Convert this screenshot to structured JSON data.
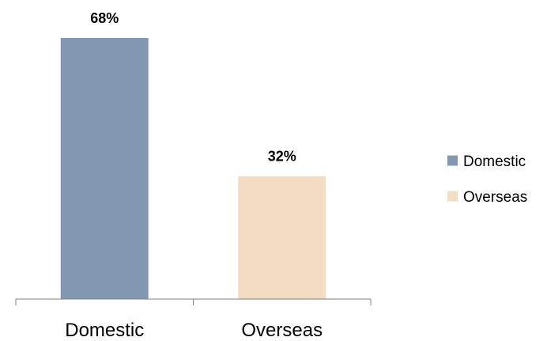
{
  "chart_data": {
    "type": "bar",
    "categories": [
      "Domestic",
      "Overseas"
    ],
    "values": [
      68,
      32
    ],
    "value_labels": [
      "68%",
      "32%"
    ],
    "unit": "%",
    "colors": [
      "#8497B0",
      "#F2DCC3"
    ],
    "title": "",
    "xlabel": "",
    "ylabel": "",
    "ylim": [
      0,
      68
    ],
    "grid": false,
    "legend": {
      "position": "right",
      "entries": [
        {
          "label": "Domestic",
          "color": "#8497B0"
        },
        {
          "label": "Overseas",
          "color": "#F2DCC3"
        }
      ]
    }
  }
}
